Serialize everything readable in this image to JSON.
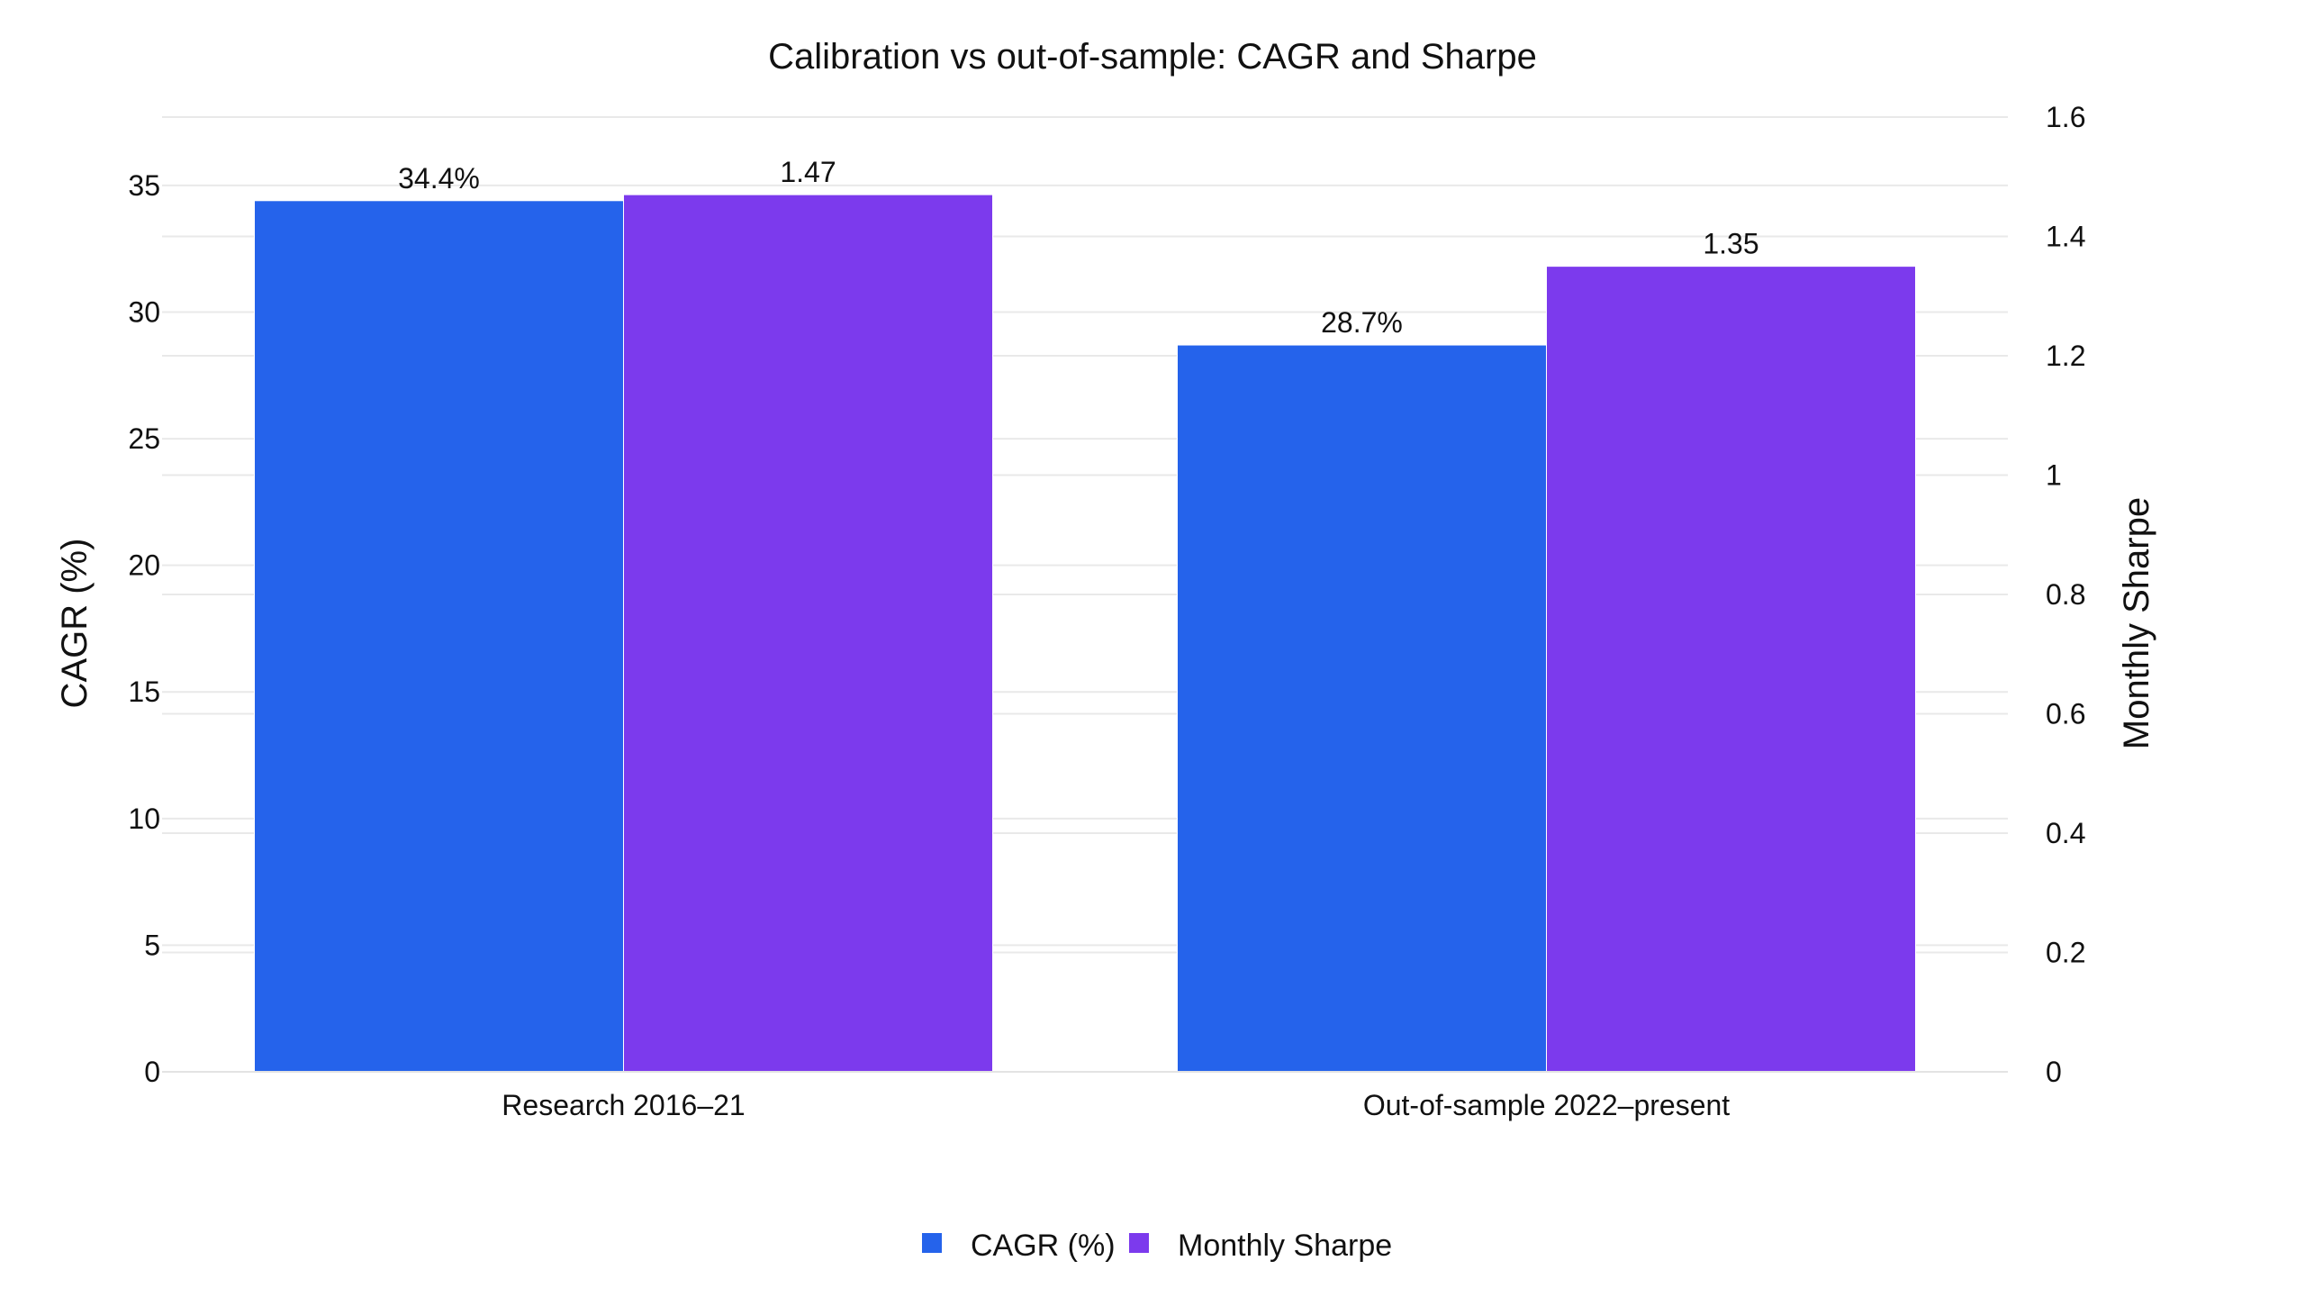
{
  "chart_data": {
    "type": "bar",
    "title": "Calibration vs out-of-sample: CAGR and Sharpe",
    "categories": [
      "Research 2016–21",
      "Out-of-sample 2022–present"
    ],
    "series": [
      {
        "name": "CAGR (%)",
        "axis": "left",
        "color": "#2563eb",
        "values": [
          34.4,
          28.7
        ],
        "labels": [
          "34.4%",
          "28.7%"
        ]
      },
      {
        "name": "Monthly Sharpe",
        "axis": "right",
        "color": "#7c3aed",
        "values": [
          1.47,
          1.35
        ],
        "labels": [
          "1.47",
          "1.35"
        ]
      }
    ],
    "y_left": {
      "label": "CAGR (%)",
      "range": [
        0,
        37.7
      ],
      "ticks": [
        0,
        5,
        10,
        15,
        20,
        25,
        30,
        35
      ],
      "tick_labels": [
        "0",
        "5",
        "10",
        "15",
        "20",
        "25",
        "30",
        "35"
      ]
    },
    "y_right": {
      "label": "Monthly Sharpe",
      "range": [
        0,
        1.6
      ],
      "ticks": [
        0,
        0.2,
        0.4,
        0.6,
        0.8,
        1,
        1.2,
        1.4,
        1.6
      ],
      "tick_labels": [
        "0",
        "0.2",
        "0.4",
        "0.6",
        "0.8",
        "1",
        "1.2",
        "1.4",
        "1.6"
      ]
    },
    "grid": true,
    "legend_position": "bottom-center"
  }
}
